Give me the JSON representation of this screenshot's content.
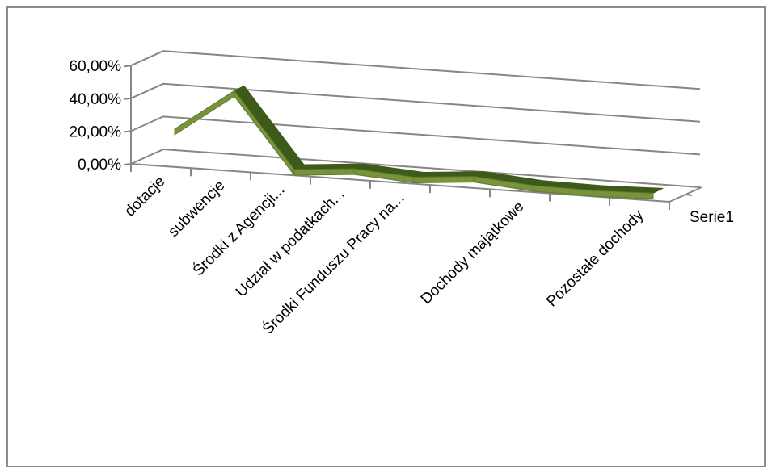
{
  "chart_data": {
    "type": "line",
    "view": "3d-perspective",
    "categories": [
      "dotacje",
      "subwencje",
      "Środki z Agencji...",
      "Udział w podatkach...",
      "Środki Funduszu Pracy na...",
      "Dochody majątkowe",
      "Pozostałe dochody"
    ],
    "x": [
      "dotacje",
      "subwencje",
      "Środki z Agencji...",
      "Udział w podatkach...",
      "Środki Funduszu Pracy na...",
      "",
      "Dochody majątkowe",
      "",
      "Pozostałe dochody"
    ],
    "series": [
      {
        "name": "Serie1",
        "values": [
          20.0,
          46.0,
          0.5,
          3.5,
          1.0,
          4.0,
          1.0,
          0.5,
          1.5
        ],
        "color": "#77933c"
      }
    ],
    "y_ticks": [
      "0,00%",
      "20,00%",
      "40,00%",
      "60,00%"
    ],
    "ylim": [
      0,
      60
    ],
    "grid": true,
    "legend": "right"
  }
}
